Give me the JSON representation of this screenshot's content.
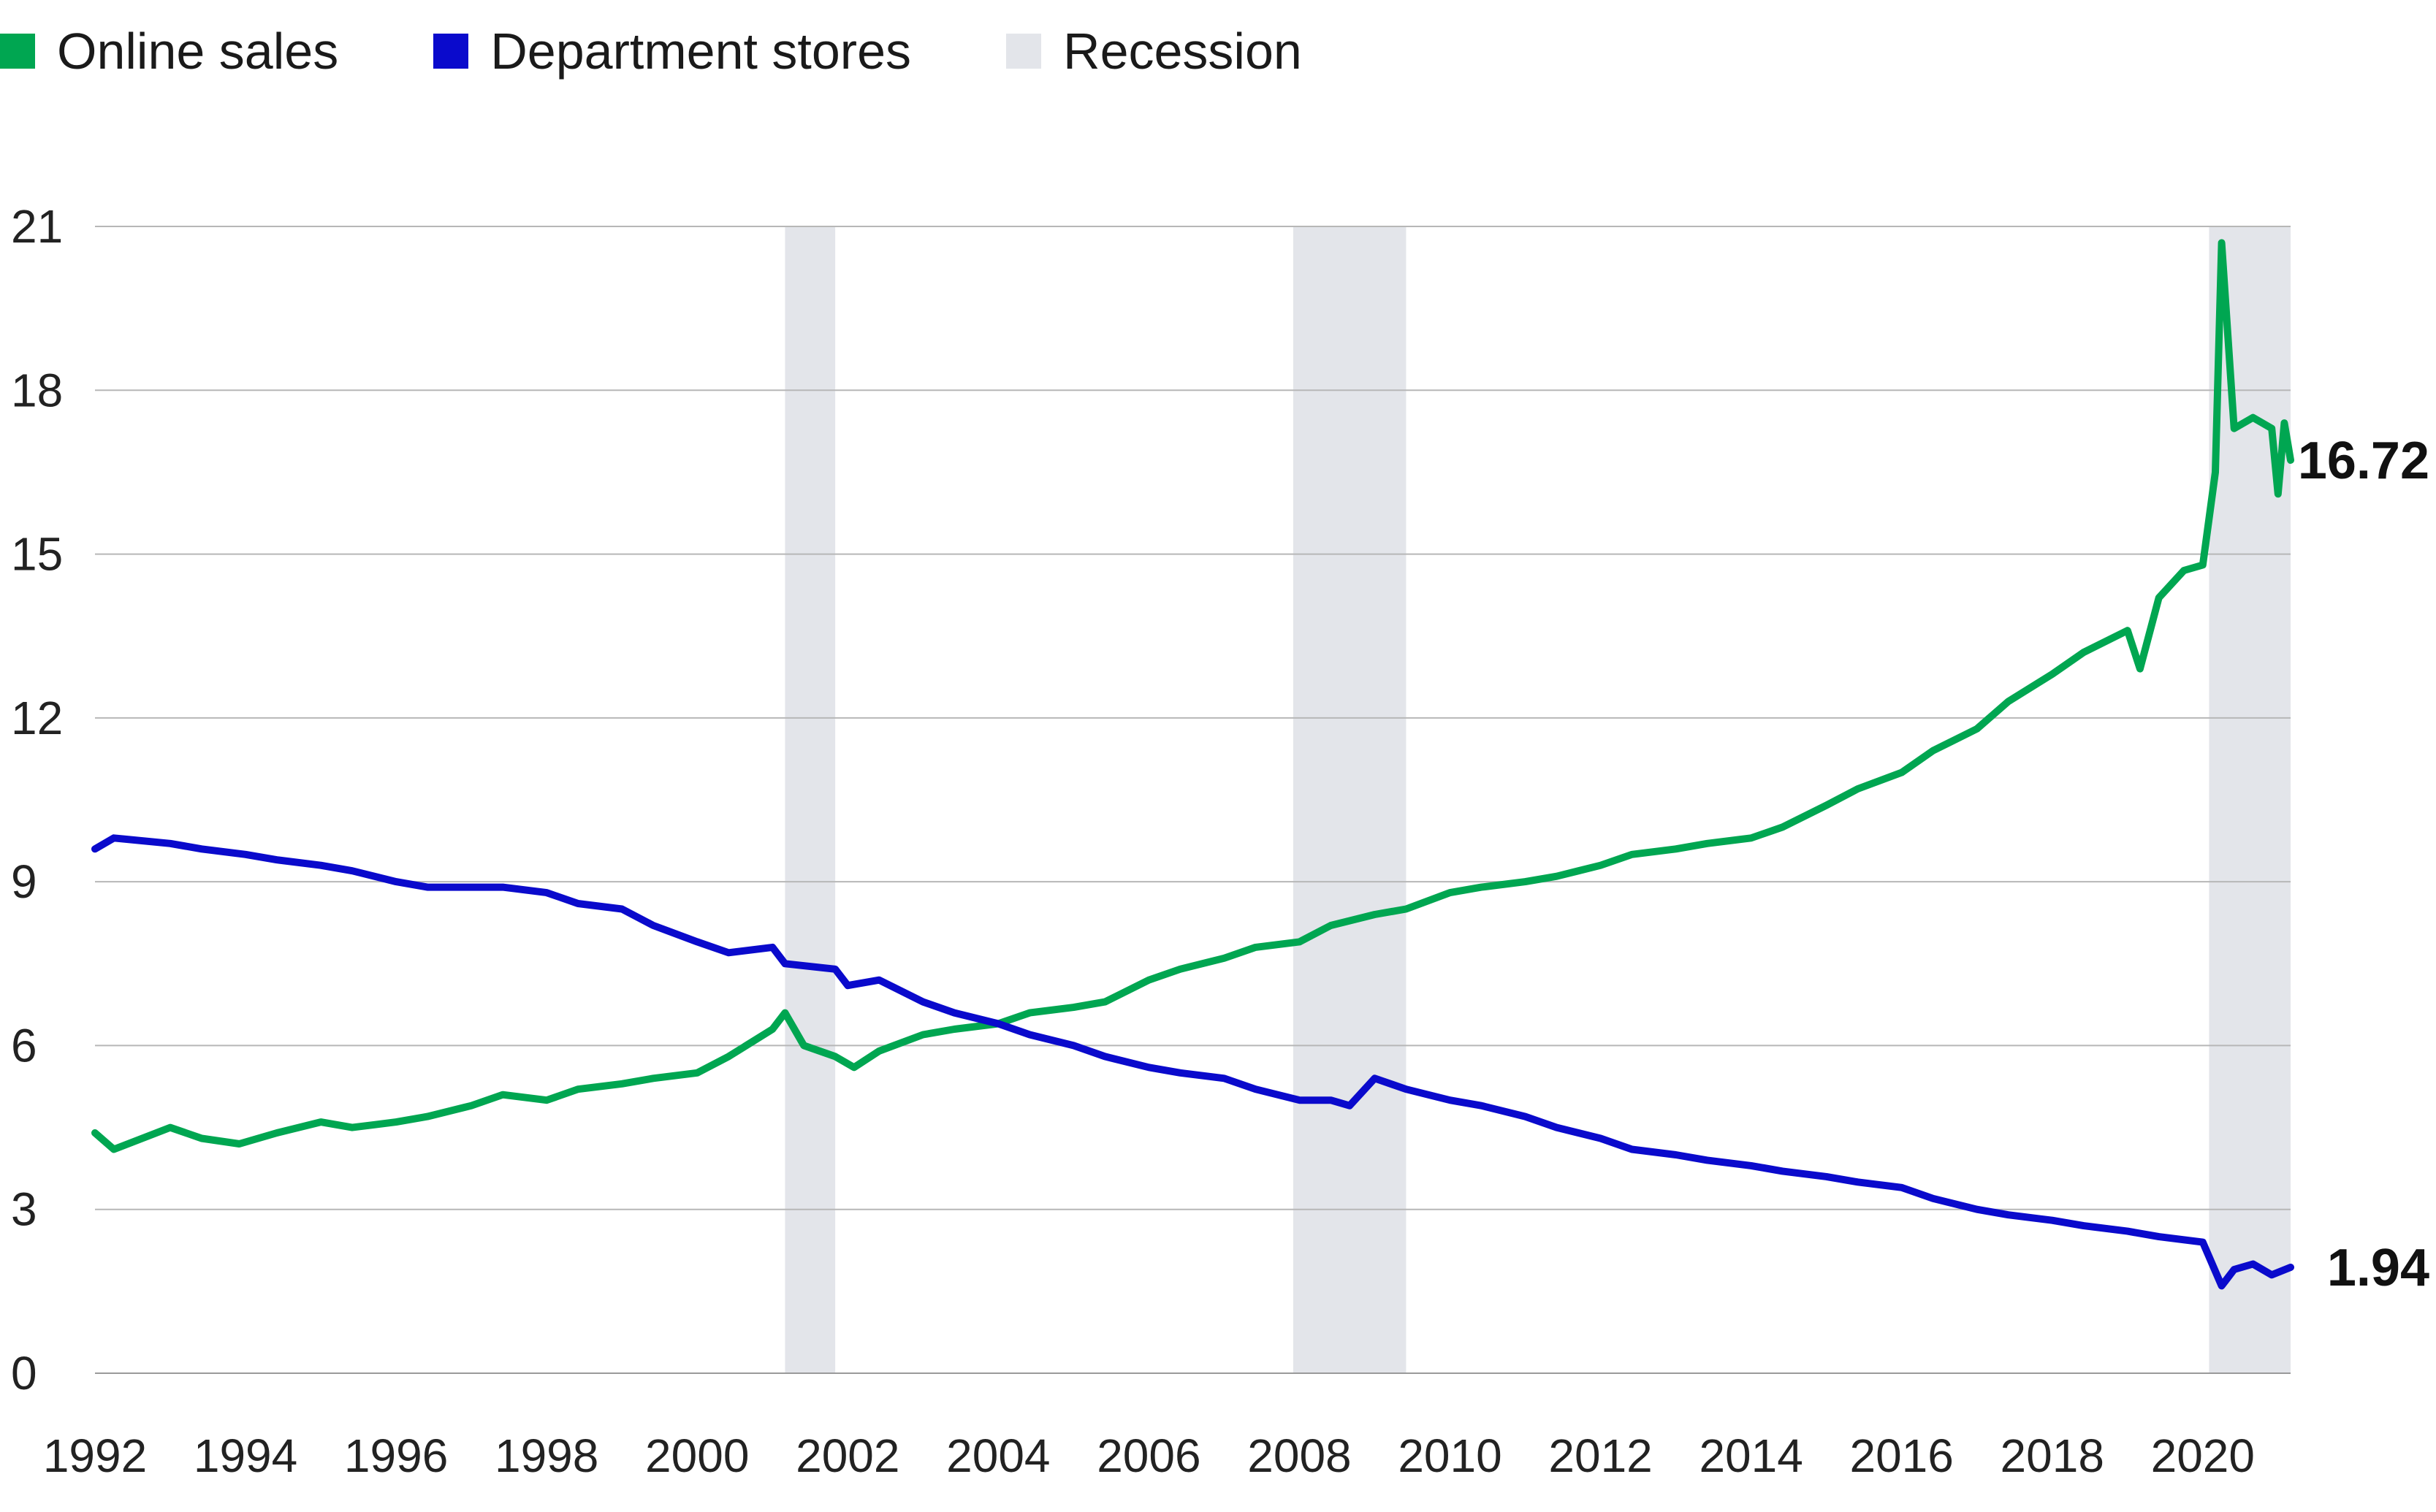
{
  "legend": {
    "online_label": "Online sales",
    "dept_label": "Department stores",
    "recession_label": "Recession"
  },
  "chart_data": {
    "type": "line",
    "x_range": [
      "1992-01",
      "2021-03"
    ],
    "x_ticks": [
      "1992",
      "1994",
      "1996",
      "1998",
      "2000",
      "2002",
      "2004",
      "2006",
      "2008",
      "2010",
      "2012",
      "2014",
      "2016",
      "2018",
      "2020"
    ],
    "y_ticks": [
      "0",
      "3",
      "6",
      "9",
      "12",
      "15",
      "18",
      "21"
    ],
    "ylim": [
      0,
      21
    ],
    "grid": "horizontal",
    "recessions": [
      {
        "start": "2001-03",
        "end": "2001-11"
      },
      {
        "start": "2007-12",
        "end": "2009-06"
      },
      {
        "start": "2020-02",
        "end": "2021-03"
      }
    ],
    "series": [
      {
        "name": "Online sales",
        "color": "#00a651",
        "end_label": "16.72",
        "points": [
          [
            "1992-01",
            4.4
          ],
          [
            "1992-04",
            4.1
          ],
          [
            "1993-01",
            4.5
          ],
          [
            "1993-06",
            4.3
          ],
          [
            "1993-12",
            4.2
          ],
          [
            "1994-06",
            4.4
          ],
          [
            "1995-01",
            4.6
          ],
          [
            "1995-06",
            4.5
          ],
          [
            "1996-01",
            4.6
          ],
          [
            "1996-06",
            4.7
          ],
          [
            "1997-01",
            4.9
          ],
          [
            "1997-06",
            5.1
          ],
          [
            "1998-01",
            5.0
          ],
          [
            "1998-06",
            5.2
          ],
          [
            "1999-01",
            5.3
          ],
          [
            "1999-06",
            5.4
          ],
          [
            "2000-01",
            5.5
          ],
          [
            "2000-06",
            5.8
          ],
          [
            "2001-01",
            6.3
          ],
          [
            "2001-03",
            6.6
          ],
          [
            "2001-06",
            6.0
          ],
          [
            "2001-11",
            5.8
          ],
          [
            "2002-02",
            5.6
          ],
          [
            "2002-06",
            5.9
          ],
          [
            "2003-01",
            6.2
          ],
          [
            "2003-06",
            6.3
          ],
          [
            "2004-01",
            6.4
          ],
          [
            "2004-06",
            6.6
          ],
          [
            "2005-01",
            6.7
          ],
          [
            "2005-06",
            6.8
          ],
          [
            "2006-01",
            7.2
          ],
          [
            "2006-06",
            7.4
          ],
          [
            "2007-01",
            7.6
          ],
          [
            "2007-06",
            7.8
          ],
          [
            "2008-01",
            7.9
          ],
          [
            "2008-06",
            8.2
          ],
          [
            "2009-01",
            8.4
          ],
          [
            "2009-06",
            8.5
          ],
          [
            "2010-01",
            8.8
          ],
          [
            "2010-06",
            8.9
          ],
          [
            "2011-01",
            9.0
          ],
          [
            "2011-06",
            9.1
          ],
          [
            "2012-01",
            9.3
          ],
          [
            "2012-06",
            9.5
          ],
          [
            "2013-01",
            9.6
          ],
          [
            "2013-06",
            9.7
          ],
          [
            "2014-01",
            9.8
          ],
          [
            "2014-06",
            10.0
          ],
          [
            "2015-01",
            10.4
          ],
          [
            "2015-06",
            10.7
          ],
          [
            "2016-01",
            11.0
          ],
          [
            "2016-06",
            11.4
          ],
          [
            "2017-01",
            11.8
          ],
          [
            "2017-06",
            12.3
          ],
          [
            "2018-01",
            12.8
          ],
          [
            "2018-06",
            13.2
          ],
          [
            "2019-01",
            13.6
          ],
          [
            "2019-03",
            12.9
          ],
          [
            "2019-06",
            14.2
          ],
          [
            "2019-10",
            14.7
          ],
          [
            "2020-01",
            14.8
          ],
          [
            "2020-03",
            16.5
          ],
          [
            "2020-04",
            20.7
          ],
          [
            "2020-06",
            17.3
          ],
          [
            "2020-09",
            17.5
          ],
          [
            "2020-12",
            17.3
          ],
          [
            "2021-01",
            16.1
          ],
          [
            "2021-02",
            17.4
          ],
          [
            "2021-03",
            16.72
          ]
        ]
      },
      {
        "name": "Department stores",
        "color": "#0a0acc",
        "end_label": "1.94",
        "points": [
          [
            "1992-01",
            9.6
          ],
          [
            "1992-04",
            9.8
          ],
          [
            "1993-01",
            9.7
          ],
          [
            "1993-06",
            9.6
          ],
          [
            "1994-01",
            9.5
          ],
          [
            "1994-06",
            9.4
          ],
          [
            "1995-01",
            9.3
          ],
          [
            "1995-06",
            9.2
          ],
          [
            "1996-01",
            9.0
          ],
          [
            "1996-06",
            8.9
          ],
          [
            "1997-01",
            8.9
          ],
          [
            "1997-06",
            8.9
          ],
          [
            "1998-01",
            8.8
          ],
          [
            "1998-06",
            8.6
          ],
          [
            "1999-01",
            8.5
          ],
          [
            "1999-06",
            8.2
          ],
          [
            "2000-01",
            7.9
          ],
          [
            "2000-06",
            7.7
          ],
          [
            "2001-01",
            7.8
          ],
          [
            "2001-03",
            7.5
          ],
          [
            "2001-11",
            7.4
          ],
          [
            "2002-01",
            7.1
          ],
          [
            "2002-06",
            7.2
          ],
          [
            "2003-01",
            6.8
          ],
          [
            "2003-06",
            6.6
          ],
          [
            "2004-01",
            6.4
          ],
          [
            "2004-06",
            6.2
          ],
          [
            "2005-01",
            6.0
          ],
          [
            "2005-06",
            5.8
          ],
          [
            "2006-01",
            5.6
          ],
          [
            "2006-06",
            5.5
          ],
          [
            "2007-01",
            5.4
          ],
          [
            "2007-06",
            5.2
          ],
          [
            "2008-01",
            5.0
          ],
          [
            "2008-06",
            5.0
          ],
          [
            "2008-09",
            4.9
          ],
          [
            "2009-01",
            5.4
          ],
          [
            "2009-06",
            5.2
          ],
          [
            "2010-01",
            5.0
          ],
          [
            "2010-06",
            4.9
          ],
          [
            "2011-01",
            4.7
          ],
          [
            "2011-06",
            4.5
          ],
          [
            "2012-01",
            4.3
          ],
          [
            "2012-06",
            4.1
          ],
          [
            "2013-01",
            4.0
          ],
          [
            "2013-06",
            3.9
          ],
          [
            "2014-01",
            3.8
          ],
          [
            "2014-06",
            3.7
          ],
          [
            "2015-01",
            3.6
          ],
          [
            "2015-06",
            3.5
          ],
          [
            "2016-01",
            3.4
          ],
          [
            "2016-06",
            3.2
          ],
          [
            "2017-01",
            3.0
          ],
          [
            "2017-06",
            2.9
          ],
          [
            "2018-01",
            2.8
          ],
          [
            "2018-06",
            2.7
          ],
          [
            "2019-01",
            2.6
          ],
          [
            "2019-06",
            2.5
          ],
          [
            "2020-01",
            2.4
          ],
          [
            "2020-04",
            1.6
          ],
          [
            "2020-06",
            1.9
          ],
          [
            "2020-09",
            2.0
          ],
          [
            "2020-12",
            1.8
          ],
          [
            "2021-03",
            1.94
          ]
        ]
      }
    ]
  }
}
